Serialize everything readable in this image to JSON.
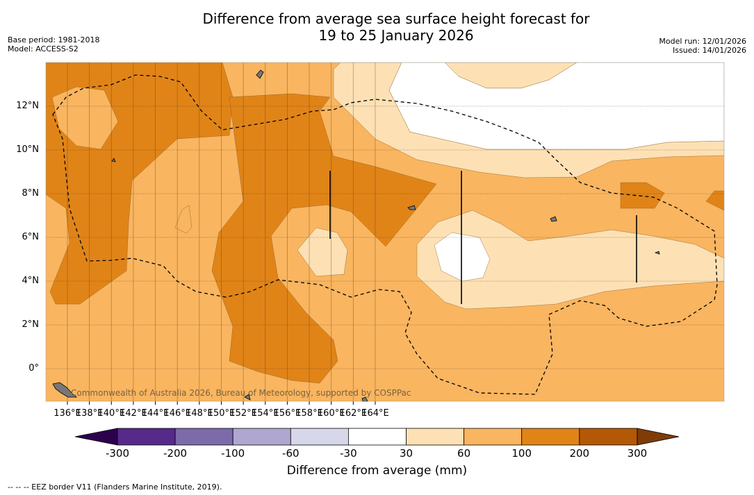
{
  "title_line1": "Difference from average sea surface height forecast for",
  "title_line2": "19 to 25 January 2026",
  "base_period": "Base period: 1981-2018",
  "model": "Model: ACCESS-S2",
  "model_run": "Model run: 12/01/2026",
  "issued": "Issued: 14/01/2026",
  "credit": "Commonwealth of Australia 2026, Bureau of Meteorology, supported by COSPPac",
  "x_ticks": [
    "136°E",
    "138°E",
    "140°E",
    "142°E",
    "144°E",
    "146°E",
    "148°E",
    "150°E",
    "152°E",
    "154°E",
    "156°E",
    "158°E",
    "160°E",
    "162°E",
    "164°E"
  ],
  "y_ticks": [
    "12°N",
    "10°N",
    "8°N",
    "6°N",
    "4°N",
    "2°N",
    "0°"
  ],
  "colorbar": {
    "title": "Difference from average (mm)",
    "labels": [
      "-300",
      "-200",
      "-100",
      "-60",
      "-30",
      "30",
      "60",
      "100",
      "200",
      "300"
    ],
    "colors": [
      "#562a8a",
      "#7d6aa9",
      "#afa7cf",
      "#d7d7ea",
      "#ffffff",
      "#fde1b5",
      "#f9b560",
      "#e08418",
      "#b35806"
    ],
    "under_color": "#2d004b",
    "over_color": "#7f3b08"
  },
  "footnote": "--  --  -- EEZ border V11 (Flanders Marine Institute, 2019)."
}
